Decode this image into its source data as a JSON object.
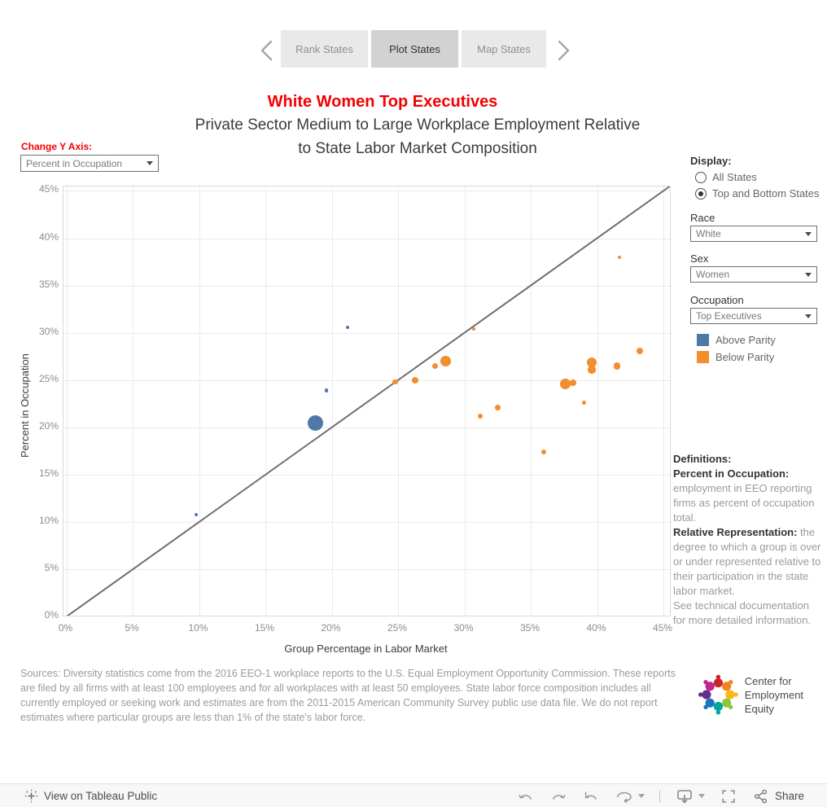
{
  "colors": {
    "accent_red": "#f40000",
    "above_parity_blue": "#4e79a7",
    "below_parity_orange": "#f28e2b",
    "diagonal_gray": "#6f6f6f"
  },
  "nav": {
    "prev_icon": "chevron-left",
    "next_icon": "chevron-right",
    "tabs": [
      {
        "label": "Rank States",
        "active": false
      },
      {
        "label": "Plot States",
        "active": true
      },
      {
        "label": "Map States",
        "active": false
      }
    ]
  },
  "header": {
    "title": "White Women Top Executives",
    "subtitle_line1": "Private Sector Medium to Large Workplace Employment Relative",
    "subtitle_line2": "to State Labor Market Composition"
  },
  "y_axis_control": {
    "label": "Change Y Axis:",
    "value": "Percent in Occupation"
  },
  "filters": {
    "display": {
      "label": "Display:",
      "options": [
        {
          "label": "All States",
          "selected": false
        },
        {
          "label": "Top and Bottom States",
          "selected": true
        }
      ]
    },
    "race": {
      "label": "Race",
      "value": "White"
    },
    "sex": {
      "label": "Sex",
      "value": "Women"
    },
    "occupation": {
      "label": "Occupation",
      "value": "Top Executives"
    }
  },
  "legend": {
    "items": [
      {
        "label": "Above Parity",
        "color": "#4e79a7"
      },
      {
        "label": "Below Parity",
        "color": "#f28e2b"
      }
    ]
  },
  "chart_data": {
    "type": "scatter",
    "xlabel": "Group Percentage in Labor Market",
    "ylabel": "Percent in Occupation",
    "xlim": [
      0,
      45.5
    ],
    "ylim": [
      0,
      45.5
    ],
    "ticks": {
      "values": [
        0,
        5,
        10,
        15,
        20,
        25,
        30,
        35,
        40,
        45
      ],
      "labels": [
        "0%",
        "5%",
        "10%",
        "15%",
        "20%",
        "25%",
        "30%",
        "35%",
        "40%",
        "45%"
      ]
    },
    "grid": true,
    "reference_line": {
      "type": "diagonal-parity",
      "from": [
        0,
        0
      ],
      "to": [
        45.5,
        45.5
      ]
    },
    "series": [
      {
        "name": "Above Parity",
        "color": "#4e79a7",
        "points": [
          {
            "x": 9.8,
            "y": 10.8,
            "r": 2
          },
          {
            "x": 18.8,
            "y": 20.5,
            "r": 9.5
          },
          {
            "x": 19.6,
            "y": 23.9,
            "r": 2.3
          },
          {
            "x": 21.2,
            "y": 30.6,
            "r": 2
          }
        ]
      },
      {
        "name": "Below Parity",
        "color": "#f28e2b",
        "points": [
          {
            "x": 24.8,
            "y": 24.8,
            "r": 3.3
          },
          {
            "x": 26.3,
            "y": 25.0,
            "r": 4
          },
          {
            "x": 27.8,
            "y": 26.5,
            "r": 3.7
          },
          {
            "x": 28.6,
            "y": 27.0,
            "r": 6.5
          },
          {
            "x": 30.7,
            "y": 30.4,
            "r": 2
          },
          {
            "x": 31.2,
            "y": 21.2,
            "r": 3.3
          },
          {
            "x": 32.5,
            "y": 22.1,
            "r": 3.3
          },
          {
            "x": 36.0,
            "y": 17.4,
            "r": 3
          },
          {
            "x": 37.6,
            "y": 24.6,
            "r": 6.3
          },
          {
            "x": 38.2,
            "y": 24.7,
            "r": 3.8
          },
          {
            "x": 39.0,
            "y": 22.6,
            "r": 2.5
          },
          {
            "x": 39.6,
            "y": 26.9,
            "r": 6
          },
          {
            "x": 39.6,
            "y": 26.1,
            "r": 4.8
          },
          {
            "x": 41.5,
            "y": 26.5,
            "r": 4.3
          },
          {
            "x": 41.7,
            "y": 38.0,
            "r": 2
          },
          {
            "x": 43.2,
            "y": 28.1,
            "r": 4
          }
        ]
      }
    ]
  },
  "definitions": {
    "heading": "Definitions:",
    "items": [
      {
        "term": "Percent in Occupation:",
        "text": " employment in EEO reporting firms as percent of occupation total."
      },
      {
        "term": "Relative Representation:",
        "text": " the degree to which a group is over or under represented relative to their participation in the state labor market."
      },
      {
        "term": "",
        "text": "See technical documentation for more detailed information."
      }
    ]
  },
  "sources": "Sources: Diversity statistics come from the 2016 EEO-1 workplace reports to the U.S. Equal Employment Opportunity Commission. These reports are filed by all firms with at least 100 employees and for all workplaces with at least 50 employees. State labor force composition includes all currently employed or seeking work and estimates are from the 2011-2015 American Community Survey public use data file. We do not report estimates where particular groups are less than 1% of the state's labor force.",
  "logo": {
    "line1": "Center for",
    "line2": "Employment Equity",
    "wheel_colors": [
      "#c9252c",
      "#f58220",
      "#fdb714",
      "#8dc63f",
      "#00a79d",
      "#1b75bc",
      "#662d91",
      "#c0278d"
    ]
  },
  "footer": {
    "view_label": "View on Tableau Public",
    "share_label": "Share",
    "icons": [
      "tableau-logo-icon",
      "undo-icon",
      "redo-icon",
      "revert-icon",
      "refresh-icon",
      "download-icon",
      "fullscreen-icon",
      "share-icon"
    ]
  }
}
